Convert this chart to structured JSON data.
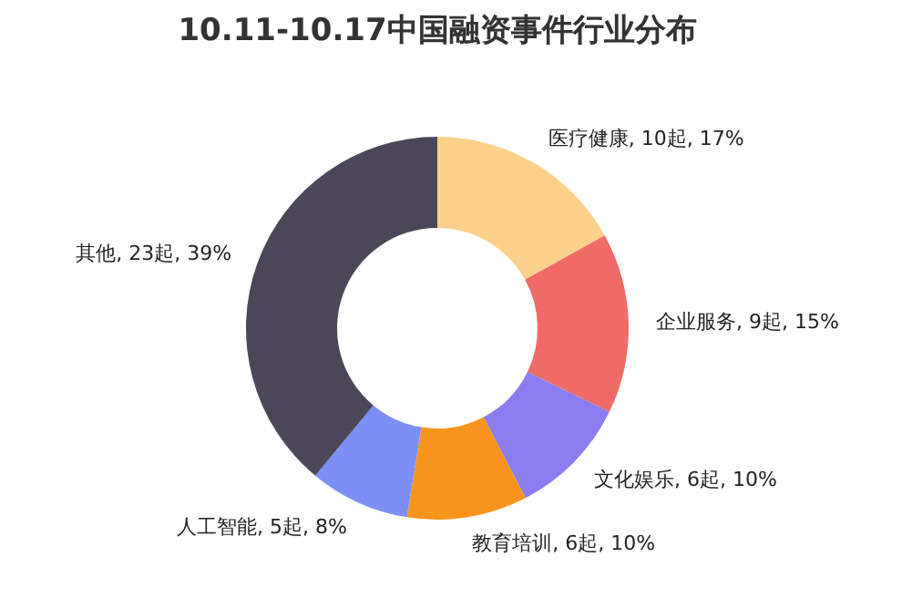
{
  "chart_data": {
    "type": "donut",
    "title": "10.11-10.17中国融资事件行业分布",
    "categories": [
      "医疗健康",
      "企业服务",
      "文化娱乐",
      "教育培训",
      "人工智能",
      "其他"
    ],
    "values": [
      10,
      9,
      6,
      6,
      5,
      23
    ],
    "value_labels": [
      "10起, 17%",
      "9起, 15%",
      "6起, 10%",
      "6起, 10%",
      "5起, 8%",
      "23起, 39%"
    ],
    "colors": [
      "#fdd18c",
      "#ef6b67",
      "#8b7df0",
      "#f7941d",
      "#7b8ff7",
      "#4b4759"
    ],
    "legend": false
  }
}
